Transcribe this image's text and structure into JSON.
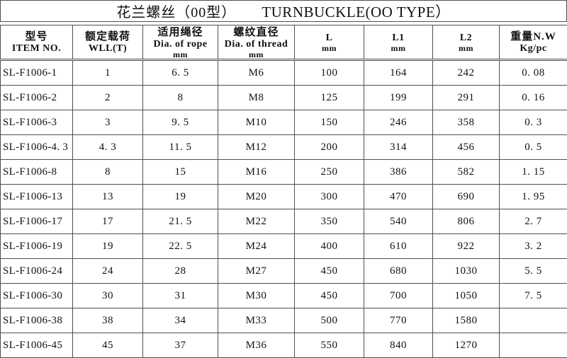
{
  "title": {
    "zh": "花兰螺丝（00型）",
    "en": "TURNBUCKLE(OO TYPE）"
  },
  "columns": [
    {
      "lines": [
        "型号",
        "ITEM NO."
      ]
    },
    {
      "lines": [
        "额定载荷",
        "WLL(T)"
      ]
    },
    {
      "lines": [
        "适用绳径",
        "Dia. of rope",
        "mm"
      ]
    },
    {
      "lines": [
        "螺纹直径",
        "Dia. of thread",
        "mm"
      ]
    },
    {
      "lines": [
        "L",
        "mm"
      ]
    },
    {
      "lines": [
        "L1",
        "mm"
      ]
    },
    {
      "lines": [
        "L2",
        "mm"
      ]
    },
    {
      "lines": [
        "重量N.W",
        "Kg/pc"
      ]
    }
  ],
  "rows": [
    [
      "SL-F1006-1",
      "1",
      "6. 5",
      "M6",
      "100",
      "164",
      "242",
      "0. 08"
    ],
    [
      "SL-F1006-2",
      "2",
      "8",
      "M8",
      "125",
      "199",
      "291",
      "0. 16"
    ],
    [
      "SL-F1006-3",
      "3",
      "9. 5",
      "M10",
      "150",
      "246",
      "358",
      "0. 3"
    ],
    [
      "SL-F1006-4. 3",
      "4. 3",
      "11. 5",
      "M12",
      "200",
      "314",
      "456",
      "0. 5"
    ],
    [
      "SL-F1006-8",
      "8",
      "15",
      "M16",
      "250",
      "386",
      "582",
      "1. 15"
    ],
    [
      "SL-F1006-13",
      "13",
      "19",
      "M20",
      "300",
      "470",
      "690",
      "1. 95"
    ],
    [
      "SL-F1006-17",
      "17",
      "21. 5",
      "M22",
      "350",
      "540",
      "806",
      "2. 7"
    ],
    [
      "SL-F1006-19",
      "19",
      "22. 5",
      "M24",
      "400",
      "610",
      "922",
      "3. 2"
    ],
    [
      "SL-F1006-24",
      "24",
      "28",
      "M27",
      "450",
      "680",
      "1030",
      "5. 5"
    ],
    [
      "SL-F1006-30",
      "30",
      "31",
      "M30",
      "450",
      "700",
      "1050",
      "7. 5"
    ],
    [
      "SL-F1006-38",
      "38",
      "34",
      "M33",
      "500",
      "770",
      "1580",
      ""
    ],
    [
      "SL-F1006-45",
      "45",
      "37",
      "M36",
      "550",
      "840",
      "1270",
      ""
    ]
  ],
  "border_color": "#4f4f4f",
  "text_color": "#111111"
}
